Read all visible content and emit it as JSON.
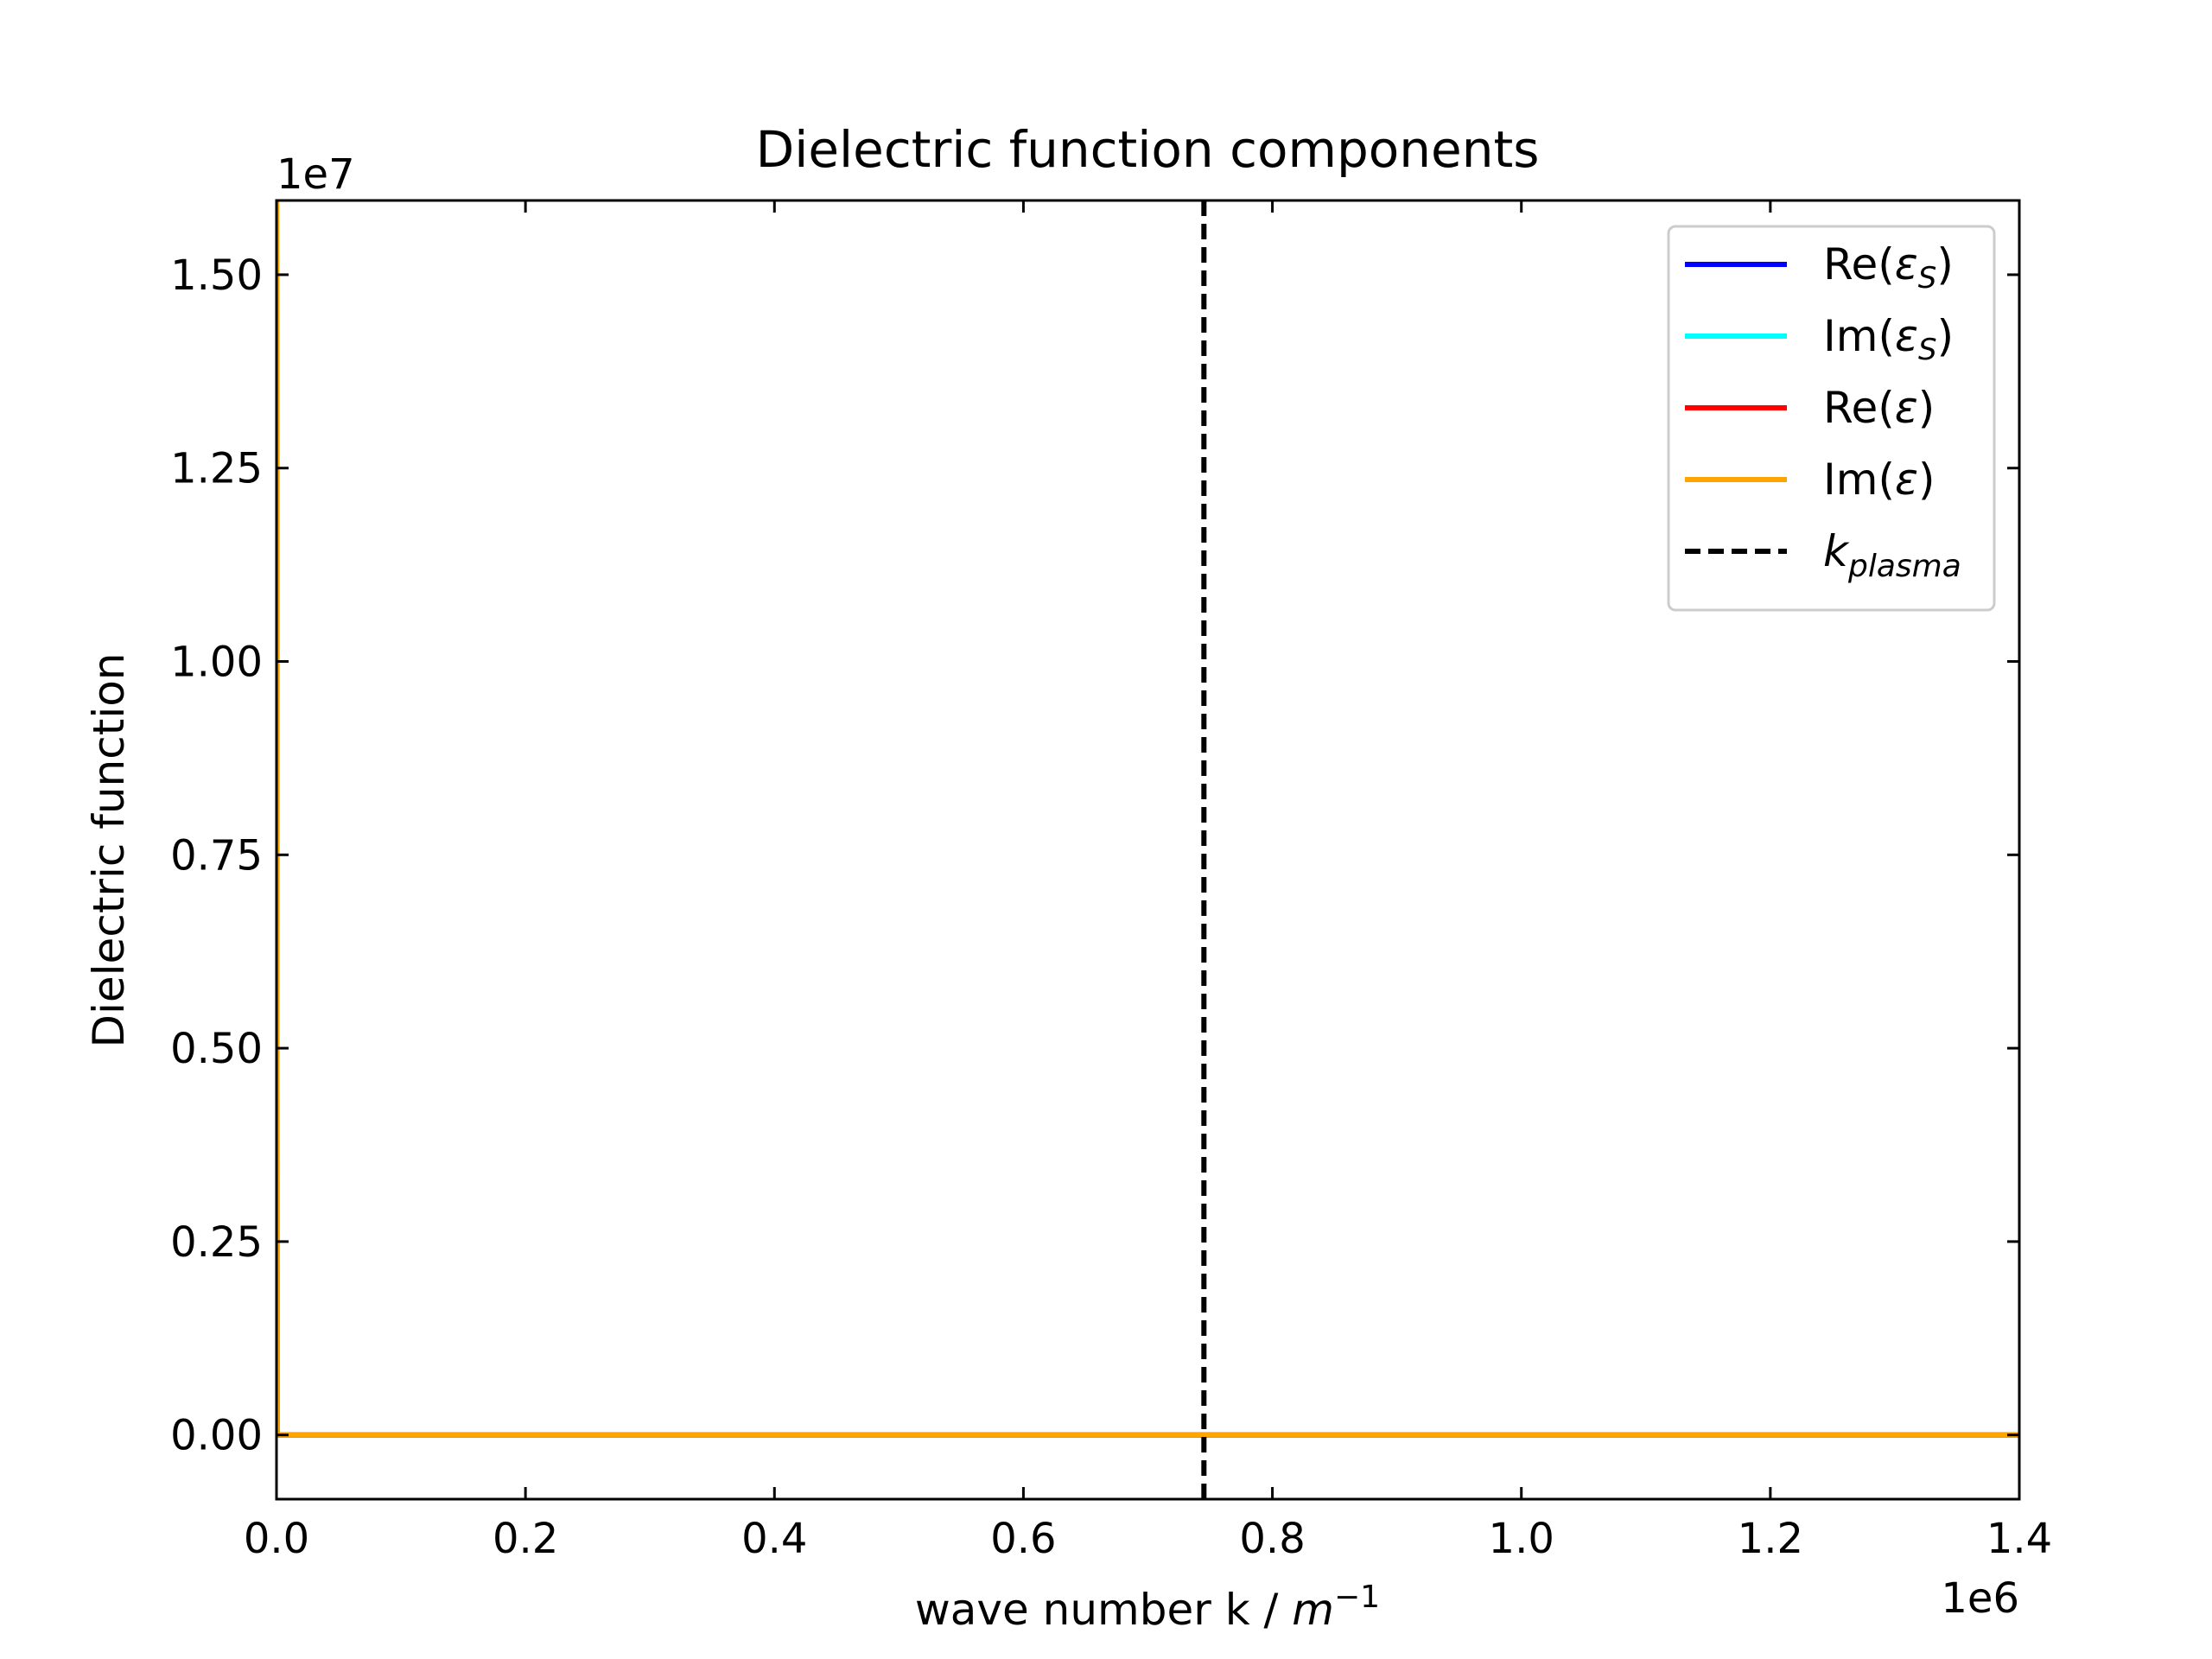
{
  "chart_data": {
    "type": "line",
    "title": "Dielectric function components",
    "xlabel": "wave number k / m⁻¹",
    "ylabel": "Dielectric function",
    "x_multiplier_label": "1e6",
    "y_multiplier_label": "1e7",
    "xlim": [
      0.0,
      1.4
    ],
    "ylim": [
      -0.083,
      1.596
    ],
    "x_unit_scale": 1000000,
    "y_unit_scale": 10000000,
    "xticks": [
      0.0,
      0.2,
      0.4,
      0.6,
      0.8,
      1.0,
      1.2,
      1.4
    ],
    "xtick_labels": [
      "0.0",
      "0.2",
      "0.4",
      "0.6",
      "0.8",
      "1.0",
      "1.2",
      "1.4"
    ],
    "yticks": [
      0.0,
      0.25,
      0.5,
      0.75,
      1.0,
      1.25,
      1.5
    ],
    "ytick_labels": [
      "0.00",
      "0.25",
      "0.50",
      "0.75",
      "1.00",
      "1.25",
      "1.50"
    ],
    "grid": false,
    "legend_position": "top-right",
    "series": [
      {
        "name": "Re(εS)",
        "color": "#0000ff",
        "style": "solid",
        "x": [
          0.0,
          0.0005,
          0.002,
          1.4
        ],
        "y": [
          1.67,
          0.0,
          0.0,
          0.0
        ]
      },
      {
        "name": "Im(εS)",
        "color": "#00ffff",
        "style": "solid",
        "x": [
          0.0,
          0.0005,
          0.002,
          1.4
        ],
        "y": [
          1.67,
          0.0,
          0.0,
          0.0
        ]
      },
      {
        "name": "Re(ε)",
        "color": "#ff0000",
        "style": "solid",
        "x": [
          0.0,
          0.0005,
          0.002,
          1.4
        ],
        "y": [
          1.67,
          0.0,
          0.0,
          0.0
        ]
      },
      {
        "name": "Im(ε)",
        "color": "#ffa500",
        "style": "solid",
        "x": [
          0.0,
          0.0005,
          0.002,
          1.4
        ],
        "y": [
          1.67,
          0.0,
          0.0,
          0.0
        ]
      }
    ],
    "vlines": [
      {
        "name": "kplasma",
        "color": "#000000",
        "style": "dashed",
        "x": 0.745
      }
    ]
  }
}
